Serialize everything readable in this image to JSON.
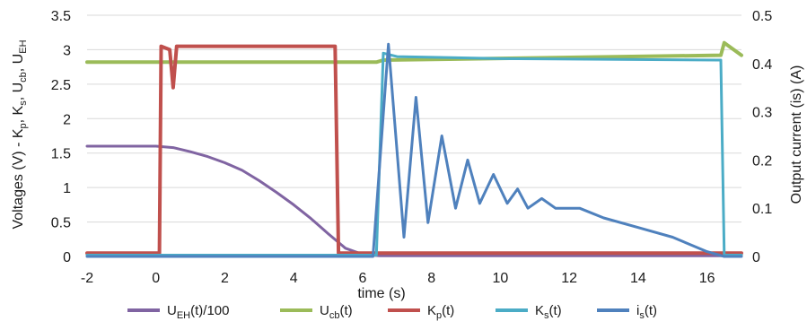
{
  "chart_data": {
    "type": "line",
    "xlabel": "time (s)",
    "ylabel_left": "Voltages (V) - Kp, Ks, Ucb, UEH",
    "ylabel_right": "Output current (is) (A)",
    "xlim": [
      -2,
      17
    ],
    "ylim_left": [
      0,
      3.5
    ],
    "ylim_right": [
      0,
      0.5
    ],
    "x_ticks": [
      -2,
      0,
      2,
      4,
      6,
      8,
      10,
      12,
      14,
      16
    ],
    "y_ticks_left": [
      "0",
      "0.5",
      "1",
      "1.5",
      "2",
      "2.5",
      "3",
      "3.5"
    ],
    "y_ticks_right": [
      "0",
      "0.1",
      "0.2",
      "0.3",
      "0.4",
      "0.5"
    ],
    "grid": "horizontal",
    "legend_position": "bottom",
    "colors": {
      "U_EH": "#8064a2",
      "U_cb": "#9bbb59",
      "K_p": "#c0504d",
      "K_s": "#4bacc6",
      "i_s": "#4f81bd"
    },
    "series": [
      {
        "key": "U_EH",
        "name": "UEH(t)/100",
        "axis": "left",
        "x": [
          -2,
          -1,
          0,
          0.5,
          1,
          1.5,
          2,
          2.5,
          3,
          3.5,
          4,
          4.5,
          5,
          5.5,
          6,
          6.5,
          17
        ],
        "values": [
          1.6,
          1.6,
          1.6,
          1.58,
          1.52,
          1.45,
          1.36,
          1.25,
          1.1,
          0.93,
          0.75,
          0.55,
          0.33,
          0.12,
          0.03,
          0.01,
          0.01
        ]
      },
      {
        "key": "U_cb",
        "name": "Ucb(t)",
        "axis": "left",
        "x": [
          -2,
          6.4,
          6.6,
          16.4,
          16.5,
          17
        ],
        "values": [
          2.82,
          2.82,
          2.85,
          2.92,
          3.1,
          2.92
        ]
      },
      {
        "key": "K_p",
        "name": "Kp(t)",
        "axis": "left",
        "x": [
          -2,
          0.1,
          0.15,
          0.4,
          0.5,
          0.6,
          5.2,
          5.3,
          17
        ],
        "values": [
          0.05,
          0.05,
          3.05,
          3.0,
          2.45,
          3.05,
          3.05,
          0.05,
          0.05
        ]
      },
      {
        "key": "K_s",
        "name": "Ks(t)",
        "axis": "left",
        "x": [
          -2,
          6.4,
          6.6,
          7,
          10,
          16.3,
          16.4,
          16.5,
          17
        ],
        "values": [
          0.02,
          0.02,
          2.95,
          2.9,
          2.87,
          2.85,
          2.85,
          0.02,
          0.02
        ]
      },
      {
        "key": "i_s",
        "name": "is(t)",
        "axis": "right",
        "x": [
          -2,
          6.3,
          6.75,
          7.2,
          7.55,
          7.9,
          8.3,
          8.7,
          9.05,
          9.4,
          9.8,
          10.2,
          10.5,
          10.8,
          11.2,
          11.6,
          12,
          12.3,
          13,
          14,
          15,
          16,
          16.5,
          17
        ],
        "values": [
          0.0,
          0.0,
          0.44,
          0.04,
          0.33,
          0.07,
          0.25,
          0.1,
          0.2,
          0.11,
          0.17,
          0.11,
          0.14,
          0.1,
          0.12,
          0.1,
          0.1,
          0.1,
          0.08,
          0.06,
          0.04,
          0.01,
          0.0,
          0.0
        ]
      }
    ],
    "legend": [
      {
        "key": "U_EH",
        "main": "U",
        "sub": "EH",
        "rest": "(t)/100"
      },
      {
        "key": "U_cb",
        "main": "U",
        "sub": "cb",
        "rest": "(t)"
      },
      {
        "key": "K_p",
        "main": "K",
        "sub": "p",
        "rest": "(t)"
      },
      {
        "key": "K_s",
        "main": "K",
        "sub": "s",
        "rest": "(t)"
      },
      {
        "key": "i_s",
        "main": "i",
        "sub": "s",
        "rest": "(t)"
      }
    ]
  }
}
